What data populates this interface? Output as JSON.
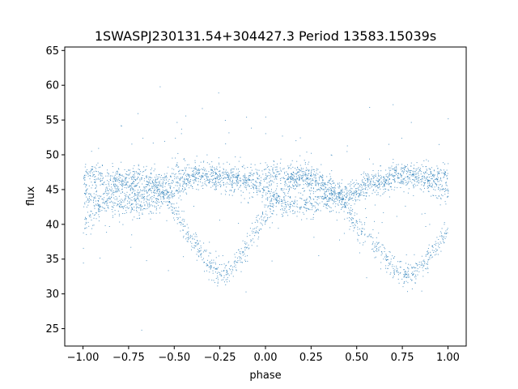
{
  "chart_data": {
    "type": "scatter",
    "title": "1SWASPJ230131.54+304427.3 Period 13583.15039s",
    "xlabel": "phase",
    "ylabel": "flux",
    "xlim": [
      -1.1,
      1.1
    ],
    "ylim": [
      22.5,
      65.5
    ],
    "xticks": [
      -1.0,
      -0.75,
      -0.5,
      -0.25,
      0.0,
      0.25,
      0.5,
      0.75,
      1.0
    ],
    "xtick_labels": [
      "−1.00",
      "−0.75",
      "−0.50",
      "−0.25",
      "0.00",
      "0.25",
      "0.50",
      "0.75",
      "1.00"
    ],
    "yticks": [
      25,
      30,
      35,
      40,
      45,
      50,
      55,
      60,
      65
    ],
    "ytick_labels": [
      "25",
      "30",
      "35",
      "40",
      "45",
      "50",
      "55",
      "60",
      "65"
    ],
    "grid": false,
    "point_color": "#1f77b4",
    "series": [
      {
        "x": [
          -1.0,
          -0.9,
          -0.8,
          -0.7,
          -0.6,
          -0.5,
          -0.4,
          -0.3,
          -0.25,
          -0.2,
          -0.1,
          0.0,
          0.1,
          0.2,
          0.3,
          0.4,
          0.5,
          0.6,
          0.7,
          0.75,
          0.8,
          0.9,
          1.0
        ],
        "y": [
          39.5,
          43.5,
          46.5,
          47.3,
          46.0,
          42.0,
          37.5,
          34.0,
          33.0,
          33.2,
          37.0,
          41.5,
          45.5,
          47.3,
          46.5,
          44.0,
          39.5,
          37.0,
          34.0,
          33.0,
          33.0,
          35.5,
          39.5
        ]
      },
      {
        "x": [
          -1.0,
          -0.9,
          -0.8,
          -0.7,
          -0.6,
          -0.5,
          -0.4,
          -0.3,
          -0.2,
          -0.1,
          0.0,
          0.1,
          0.2,
          0.3,
          0.4,
          0.5,
          0.6,
          0.7,
          0.8,
          0.9,
          1.0
        ],
        "y": [
          44.5,
          43.0,
          42.8,
          42.8,
          43.5,
          45.0,
          46.5,
          47.0,
          46.8,
          46.0,
          44.5,
          43.0,
          42.8,
          42.8,
          43.5,
          45.0,
          46.5,
          47.0,
          46.8,
          46.0,
          44.5
        ]
      },
      {
        "x": [
          -1.0,
          -0.9,
          -0.8,
          -0.7,
          -0.6,
          -0.5,
          -0.4,
          -0.3,
          -0.2,
          -0.1,
          0.0,
          0.1,
          0.2,
          0.3,
          0.4,
          0.5,
          0.6,
          0.7,
          0.8,
          0.9,
          1.0
        ],
        "y": [
          47.5,
          47.0,
          46.0,
          44.5,
          45.5,
          47.0,
          47.5,
          47.2,
          46.5,
          46.5,
          47.2,
          47.3,
          46.5,
          45.5,
          44.5,
          45.0,
          46.0,
          46.8,
          47.0,
          47.2,
          47.5
        ]
      }
    ]
  }
}
